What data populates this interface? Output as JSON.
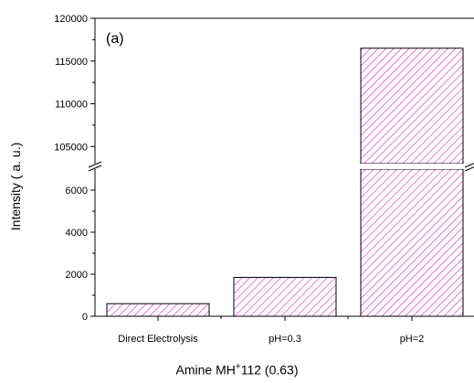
{
  "chart_data": {
    "type": "bar",
    "panel_label": "(a)",
    "categories": [
      "Direct Electrolysis",
      "pH=0.3",
      "pH=2"
    ],
    "values": [
      600,
      1850,
      116500
    ],
    "ylabel": "Intensity ( a. u.)",
    "xlabel": {
      "prefix": "Amine MH",
      "superscript": "+",
      "suffix": "112 (0.63)"
    },
    "axis_break": true,
    "lower_range": [
      0,
      7000
    ],
    "upper_range": [
      103000,
      120000
    ],
    "lower_ticks": [
      0,
      2000,
      4000,
      6000
    ],
    "upper_ticks": [
      105000,
      110000,
      115000,
      120000
    ],
    "bar_fill": "#e020c0",
    "bar_pattern": "diagonal-hatch",
    "grid": false,
    "legend": "none"
  }
}
